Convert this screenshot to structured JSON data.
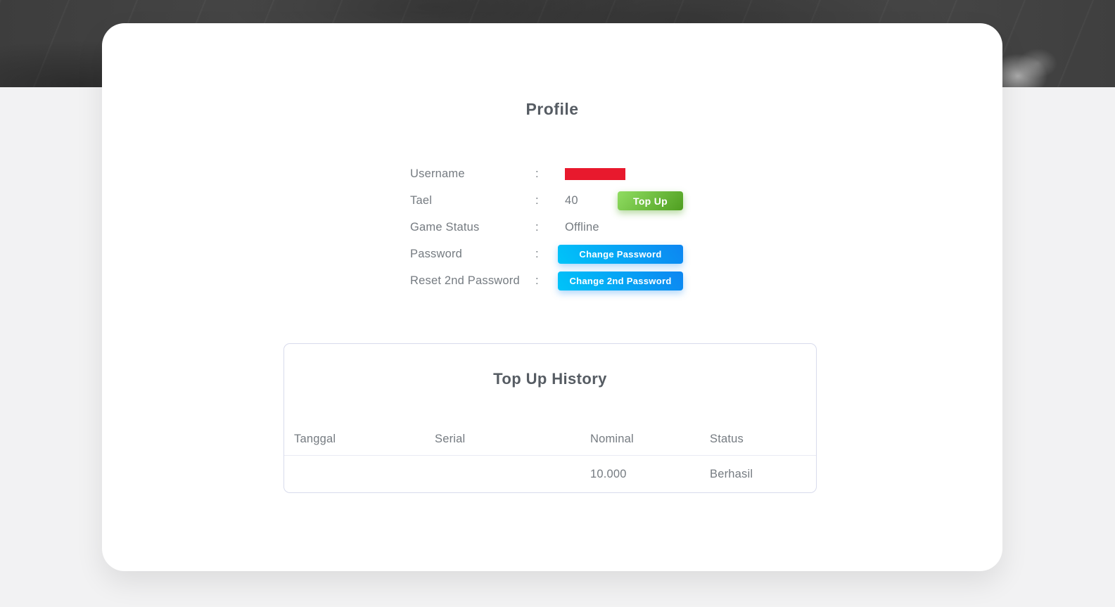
{
  "profile": {
    "title": "Profile",
    "separator": ":",
    "rows": [
      {
        "label": "Username",
        "redacted": true
      },
      {
        "label": "Tael",
        "value": "40",
        "button": "Top Up"
      },
      {
        "label": "Game Status",
        "value": "Offline"
      },
      {
        "label": "Password",
        "button": "Change Password"
      },
      {
        "label": "Reset 2nd Password",
        "button": "Change 2nd Password"
      }
    ]
  },
  "topup_history": {
    "title": "Top Up History",
    "columns": [
      "Tanggal",
      "Serial",
      "Nominal",
      "Status"
    ],
    "rows": [
      {
        "tanggal_redacted": true,
        "serial_redacted": true,
        "nominal": "10.000",
        "status": "Berhasil"
      }
    ]
  },
  "colors": {
    "redaction_red": "#e8192d",
    "topup_green_start": "#90dd62",
    "topup_green_end": "#4f9e20",
    "change_blue_start": "#00c4f9",
    "change_blue_end": "#0d86f1",
    "heading_text": "#565c63",
    "body_text": "#757b81",
    "card_background": "#ffffff",
    "page_background": "#f2f2f3",
    "banner_base": "#424242",
    "table_border": "#d8dbec"
  }
}
